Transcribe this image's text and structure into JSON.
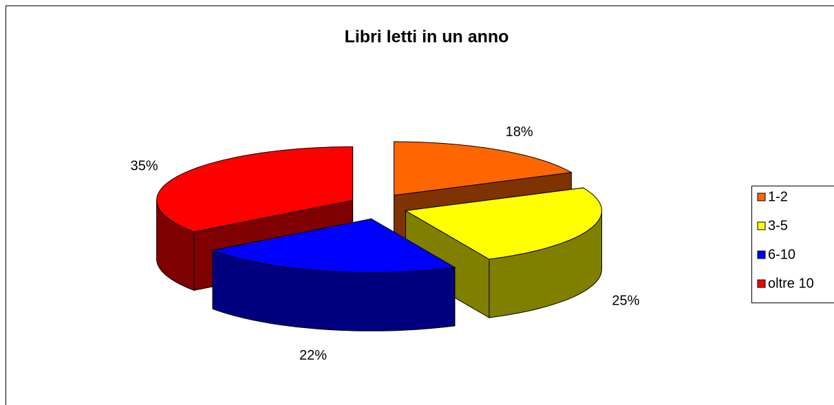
{
  "chart_data": {
    "type": "pie3d",
    "title": "Libri letti in un anno",
    "categories": [
      "1-2",
      "3-5",
      "6-10",
      "oltre 10"
    ],
    "values": [
      18,
      25,
      22,
      35
    ],
    "value_labels": [
      "18%",
      "25%",
      "22%",
      "35%"
    ],
    "colors": [
      "#ff6600",
      "#ffff00",
      "#0000ff",
      "#ff0000"
    ],
    "legend": "right"
  }
}
